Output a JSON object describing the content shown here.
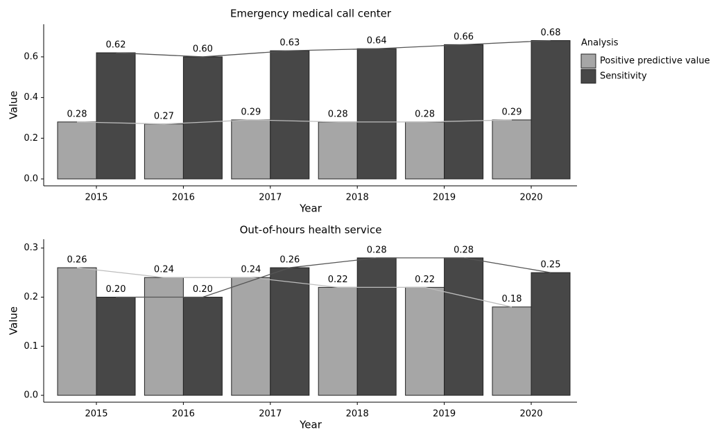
{
  "chart_data": [
    {
      "type": "bar",
      "title": "Emergency medical call center",
      "x_label": "Year",
      "y_label": "Value",
      "categories": [
        "2015",
        "2016",
        "2017",
        "2018",
        "2019",
        "2020"
      ],
      "legend": "right",
      "legend_title": "Analysis",
      "series": [
        {
          "name": "Positive predictive value",
          "color": "#a6a6a6",
          "line_color": "#bdbdbd",
          "values": [
            0.28,
            0.27,
            0.29,
            0.28,
            0.28,
            0.29
          ],
          "value_labels": [
            "0.28",
            "0.27",
            "0.29",
            "0.28",
            "0.28",
            "0.29"
          ]
        },
        {
          "name": "Sensitivity",
          "color": "#474747",
          "line_color": "#555555",
          "values": [
            0.62,
            0.6,
            0.63,
            0.64,
            0.66,
            0.68
          ],
          "value_labels": [
            "0.62",
            "0.60",
            "0.63",
            "0.64",
            "0.66",
            "0.68"
          ]
        }
      ],
      "ylim": [
        -0.034,
        0.76
      ],
      "yticks": [
        {
          "value": 0,
          "label": "0.0"
        },
        0.2,
        0.4,
        0.6
      ]
    },
    {
      "type": "bar",
      "title": "Out-of-hours health service",
      "x_label": "Year",
      "y_label": "Value",
      "categories": [
        "2015",
        "2016",
        "2017",
        "2018",
        "2019",
        "2020"
      ],
      "series": [
        {
          "name": "Positive predictive value",
          "color": "#a6a6a6",
          "line_color": "#bdbdbd",
          "values": [
            0.26,
            0.24,
            0.24,
            0.22,
            0.22,
            0.18
          ],
          "value_labels": [
            "0.26",
            "0.24",
            "0.24",
            "0.22",
            "0.22",
            "0.18"
          ]
        },
        {
          "name": "Sensitivity",
          "color": "#474747",
          "line_color": "#555555",
          "values": [
            0.2,
            0.2,
            0.26,
            0.28,
            0.28,
            0.25
          ],
          "value_labels": [
            "0.20",
            "0.20",
            "0.26",
            "0.28",
            "0.28",
            "0.25"
          ]
        }
      ],
      "ylim": [
        -0.014,
        0.318
      ],
      "yticks": [
        {
          "value": 0,
          "label": "0.0"
        },
        0.1,
        0.2,
        0.3
      ]
    }
  ]
}
